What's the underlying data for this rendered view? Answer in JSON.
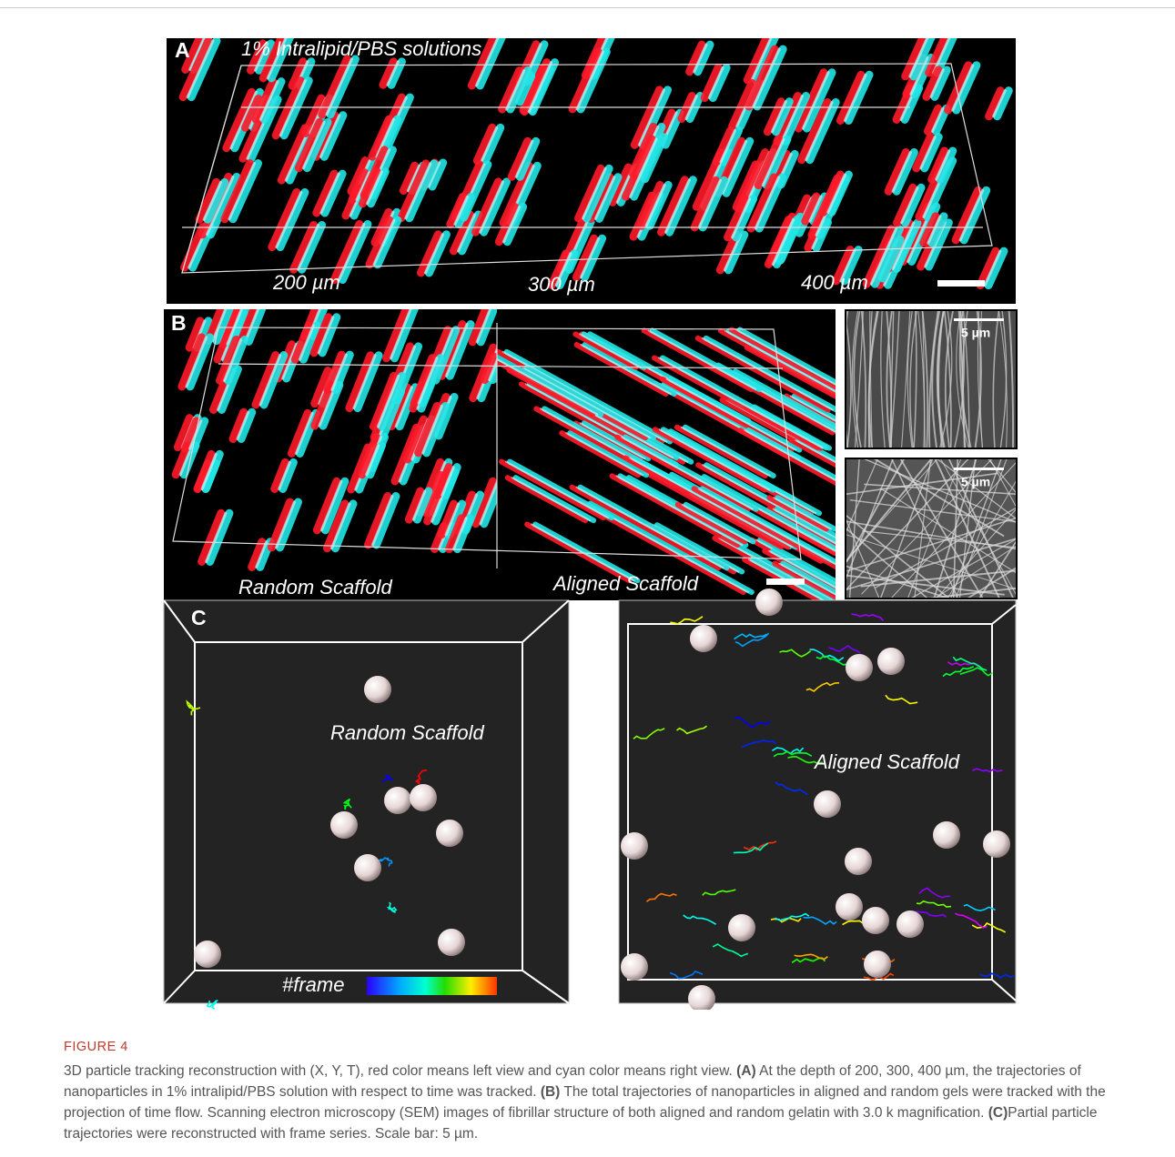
{
  "figure": {
    "panel_a": {
      "label": "A",
      "title": "1% Intralipid/PBS solutions",
      "depths": [
        "200 µm",
        "300 µm",
        "400 µm"
      ]
    },
    "panel_b": {
      "label": "B",
      "left": "Random Scaffold",
      "right": "Aligned Scaffold",
      "sem_scale": [
        "5 µm",
        "5 µm"
      ]
    },
    "panel_c": {
      "label": "C",
      "left": "Random Scaffold",
      "right": "Aligned Scaffold",
      "colorbar": "#frame"
    }
  },
  "caption": {
    "heading": "FIGURE 4",
    "parts": [
      "3D particle tracking reconstruction with (X, Y, T), red color means left view and cyan color means right view.",
      "(A)",
      "At the depth of 200, 300, 400 µm, the trajectories of nanoparticles in 1% intralipid/PBS solution with respect to time was tracked.",
      "(B)",
      "The total trajectories of nanoparticles in aligned and random gels were tracked with the projection of time flow. Scanning electron microscopy (SEM) images of fibrillar structure of both aligned and random gelatin with 3.0 k magnification.",
      "(C)",
      "Partial particle trajectories were reconstructed with frame series. Scale bar: 5 µm."
    ]
  }
}
